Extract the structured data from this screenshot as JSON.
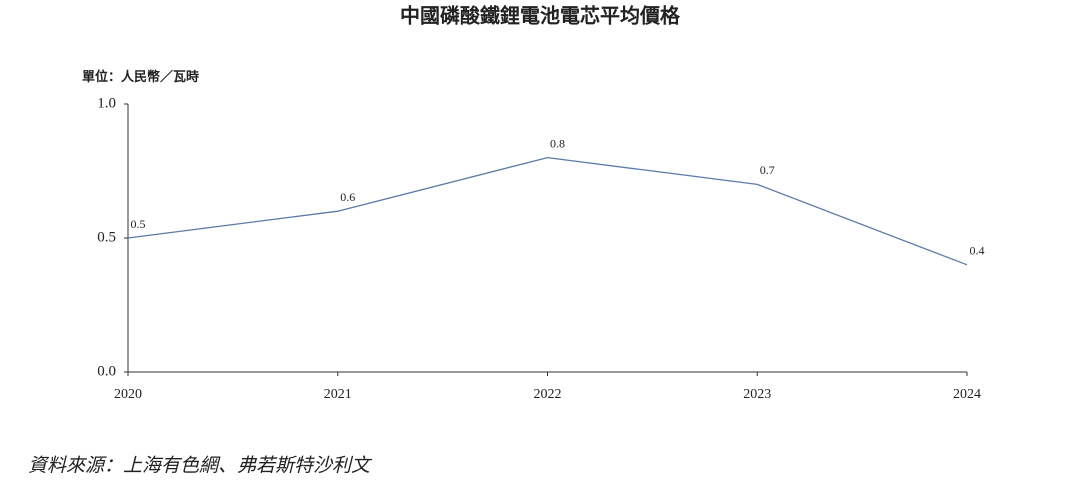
{
  "chart_data": {
    "type": "line",
    "title": "中國磷酸鐵鋰電池電芯平均價格",
    "y_axis_label": "單位：人民幣／瓦時",
    "source": "資料來源：上海有色網、弗若斯特沙利文",
    "x": [
      2020,
      2021,
      2022,
      2023,
      2024
    ],
    "values": [
      0.5,
      0.6,
      0.8,
      0.7,
      0.4
    ],
    "color": "#5b7aa8",
    "xlim": [
      2020,
      2024
    ],
    "xticks": [
      2020,
      2021,
      2022,
      2023,
      2024
    ],
    "ylim": [
      0,
      1
    ],
    "yticks": [
      {
        "value": 0,
        "label": "0.0"
      },
      {
        "value": 0.5,
        "label": "0.5"
      },
      {
        "value": 1,
        "label": "1.0"
      }
    ],
    "grid": false
  }
}
